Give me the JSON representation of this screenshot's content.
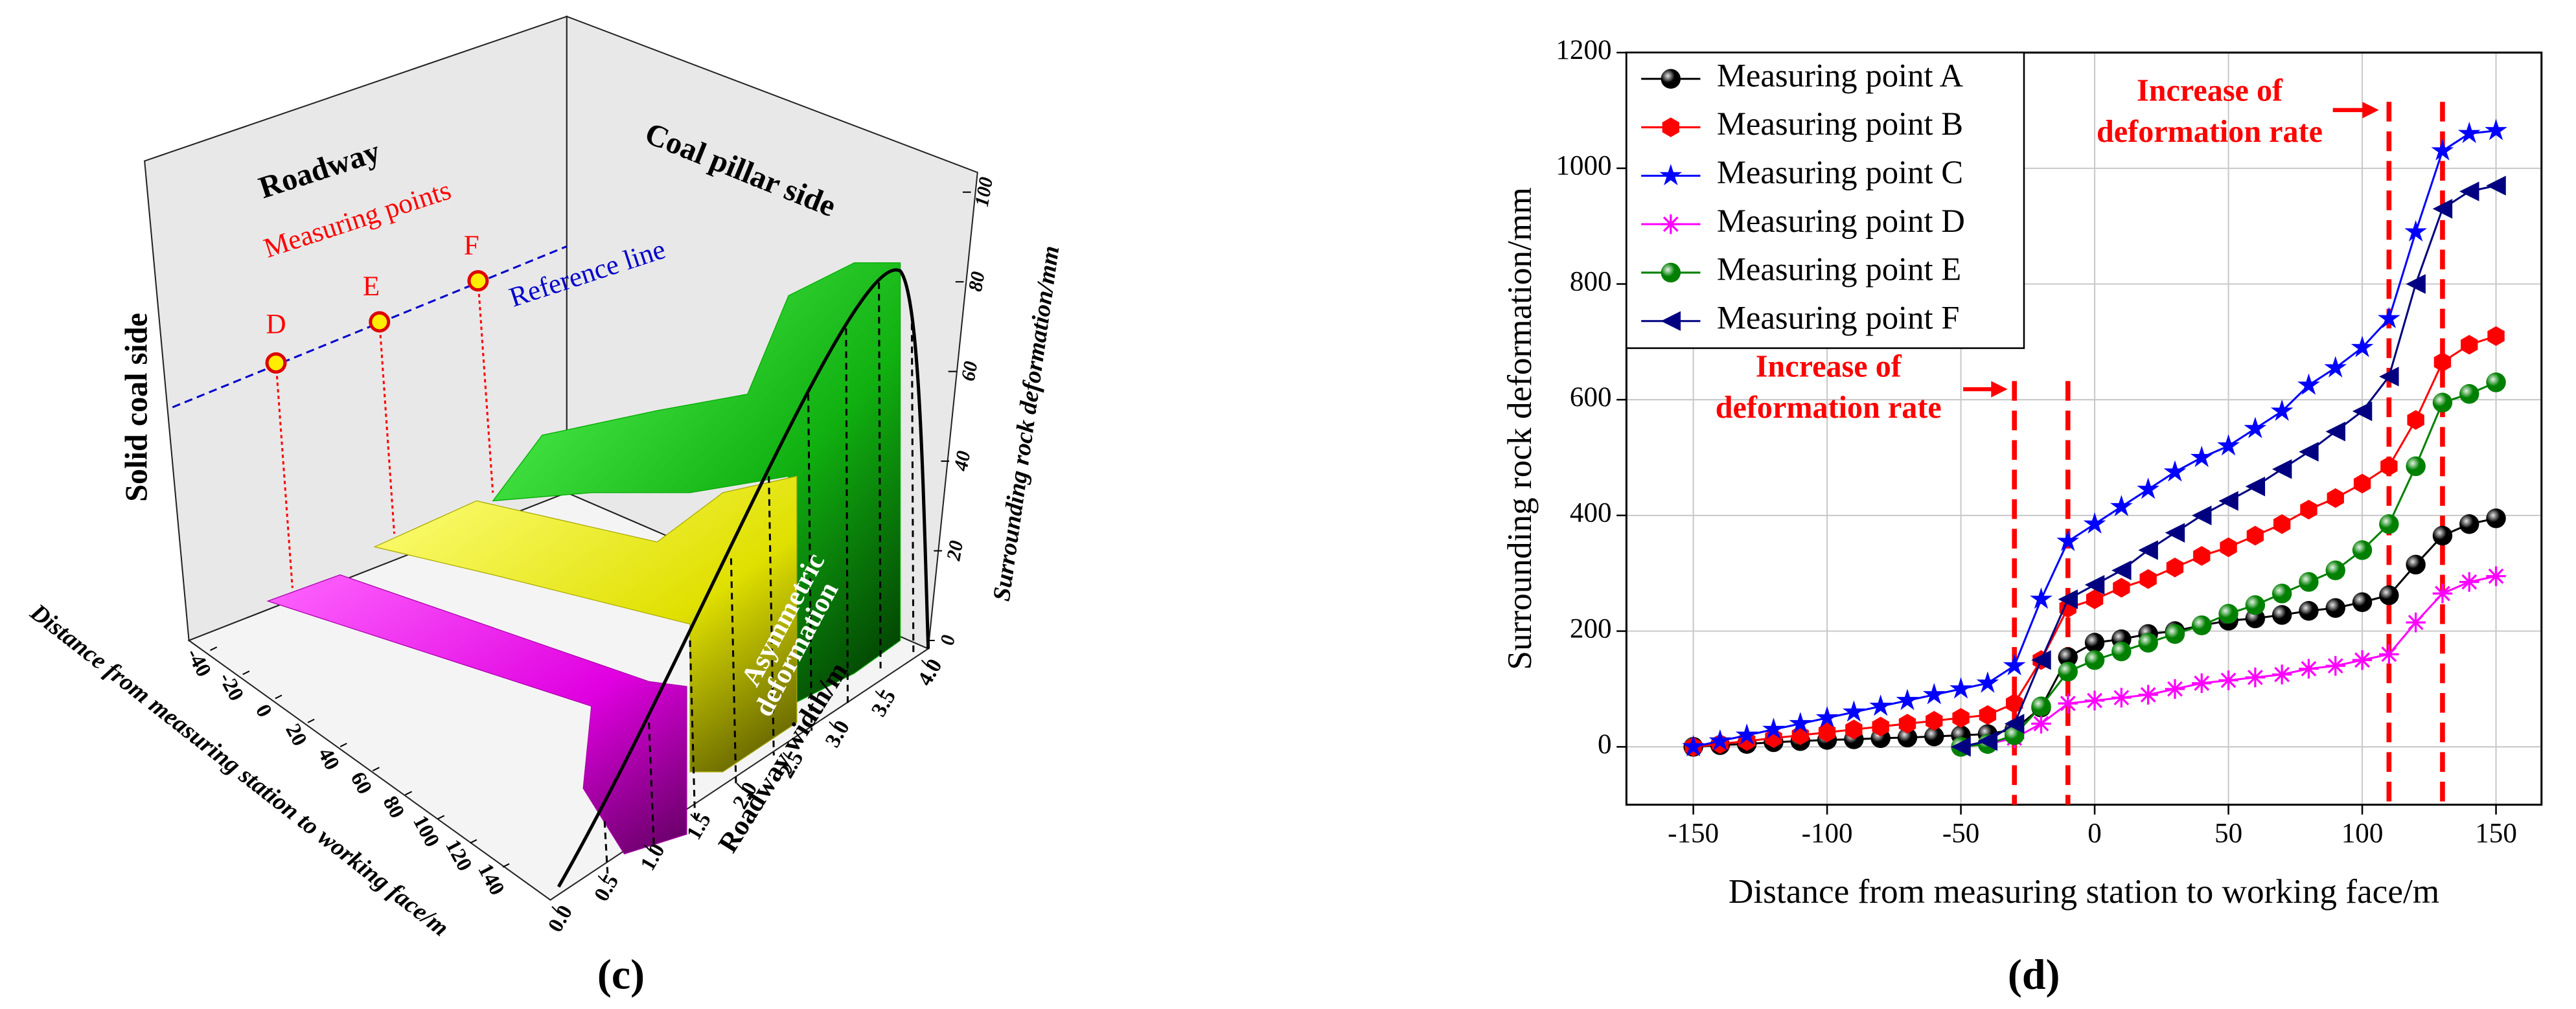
{
  "chart_data": [
    {
      "type": "surface3d",
      "panel_label": "(c)",
      "texts": {
        "roadway": "Roadway",
        "coal_pillar_side": "Coal pillar side",
        "solid_coal_side": "Solid coal side",
        "measuring_points": "Measuring points",
        "reference_line": "Reference line",
        "asymmetric": [
          "Asymmetric",
          "deformation"
        ]
      },
      "points": [
        "D",
        "E",
        "F"
      ],
      "x_label": "Distance from measuring station to working face/m",
      "y_label": "Roadway width/m",
      "z_label": "Surrounding rock deformation/mm",
      "xticks": [
        -40,
        -20,
        0,
        20,
        40,
        60,
        80,
        100,
        120,
        140
      ],
      "yticks": [
        {
          "value": 0,
          "label": "0.0"
        },
        0.5,
        {
          "value": 1,
          "label": "1.0"
        },
        1.5,
        {
          "value": 2,
          "label": "2.0"
        },
        2.5,
        {
          "value": 3,
          "label": "3.0"
        },
        3.5,
        {
          "value": 4,
          "label": "4.0"
        }
      ],
      "zticks": [
        0,
        20,
        40,
        60,
        80,
        100
      ]
    },
    {
      "type": "line",
      "panel_label": "(d)",
      "x_label": "Distance from measuring station to working face/m",
      "y_label": "Surrounding rock deformation/mm",
      "x": [
        -150,
        -140,
        -130,
        -120,
        -110,
        -100,
        -90,
        -80,
        -70,
        -60,
        -50,
        -40,
        -30,
        -20,
        -10,
        0,
        10,
        20,
        30,
        40,
        50,
        60,
        70,
        80,
        90,
        100,
        110,
        120,
        130,
        140,
        150
      ],
      "series": [
        {
          "name": "Measuring point A",
          "color": "#000000",
          "marker": "sphere",
          "values": [
            0,
            3,
            5,
            8,
            10,
            12,
            13,
            15,
            16,
            18,
            20,
            22,
            30,
            68,
            155,
            180,
            186,
            195,
            200,
            210,
            218,
            222,
            228,
            235,
            240,
            250,
            262,
            315,
            365,
            385,
            395
          ]
        },
        {
          "name": "Measuring point B",
          "color": "#ff0000",
          "marker": "hexagon",
          "values": [
            0,
            5,
            10,
            15,
            20,
            25,
            30,
            35,
            40,
            45,
            50,
            55,
            75,
            150,
            240,
            255,
            275,
            290,
            310,
            330,
            345,
            365,
            385,
            410,
            430,
            455,
            485,
            565,
            665,
            695,
            710
          ]
        },
        {
          "name": "Measuring point C",
          "color": "#0000ff",
          "marker": "star",
          "values": [
            0,
            10,
            20,
            30,
            40,
            50,
            60,
            70,
            80,
            90,
            100,
            110,
            140,
            255,
            355,
            385,
            415,
            445,
            475,
            500,
            520,
            550,
            580,
            625,
            655,
            690,
            740,
            890,
            1030,
            1060,
            1065
          ]
        },
        {
          "name": "Measuring point D",
          "color": "#ff00ff",
          "marker": "asterisk",
          "values": [
            null,
            null,
            null,
            null,
            null,
            null,
            null,
            null,
            null,
            null,
            0,
            5,
            15,
            40,
            75,
            80,
            85,
            90,
            100,
            110,
            115,
            120,
            125,
            135,
            140,
            150,
            160,
            215,
            265,
            285,
            295
          ]
        },
        {
          "name": "Measuring point E",
          "color": "#008000",
          "marker": "sphere",
          "values": [
            null,
            null,
            null,
            null,
            null,
            null,
            null,
            null,
            null,
            null,
            0,
            5,
            20,
            70,
            130,
            150,
            165,
            180,
            195,
            210,
            230,
            245,
            265,
            285,
            305,
            340,
            385,
            485,
            595,
            610,
            630
          ]
        },
        {
          "name": "Measuring point F",
          "color": "#000080",
          "marker": "triangle-left",
          "values": [
            null,
            null,
            null,
            null,
            null,
            null,
            null,
            null,
            null,
            null,
            0,
            10,
            40,
            150,
            255,
            280,
            305,
            340,
            370,
            400,
            425,
            450,
            480,
            510,
            545,
            580,
            640,
            800,
            930,
            960,
            970
          ]
        }
      ],
      "reference_lines": [
        -30,
        -10,
        110,
        130
      ],
      "annotations": [
        [
          "Increase of",
          "deformation rate"
        ],
        [
          "Increase of",
          "deformation rate"
        ]
      ],
      "xlim": [
        -175,
        167
      ],
      "ylim": [
        -100,
        1200
      ],
      "xticks": [
        -150,
        -100,
        -50,
        0,
        50,
        100,
        150
      ],
      "yticks": [
        0,
        200,
        400,
        600,
        800,
        1000,
        1200
      ],
      "grid": true,
      "legend": "upper left"
    }
  ]
}
